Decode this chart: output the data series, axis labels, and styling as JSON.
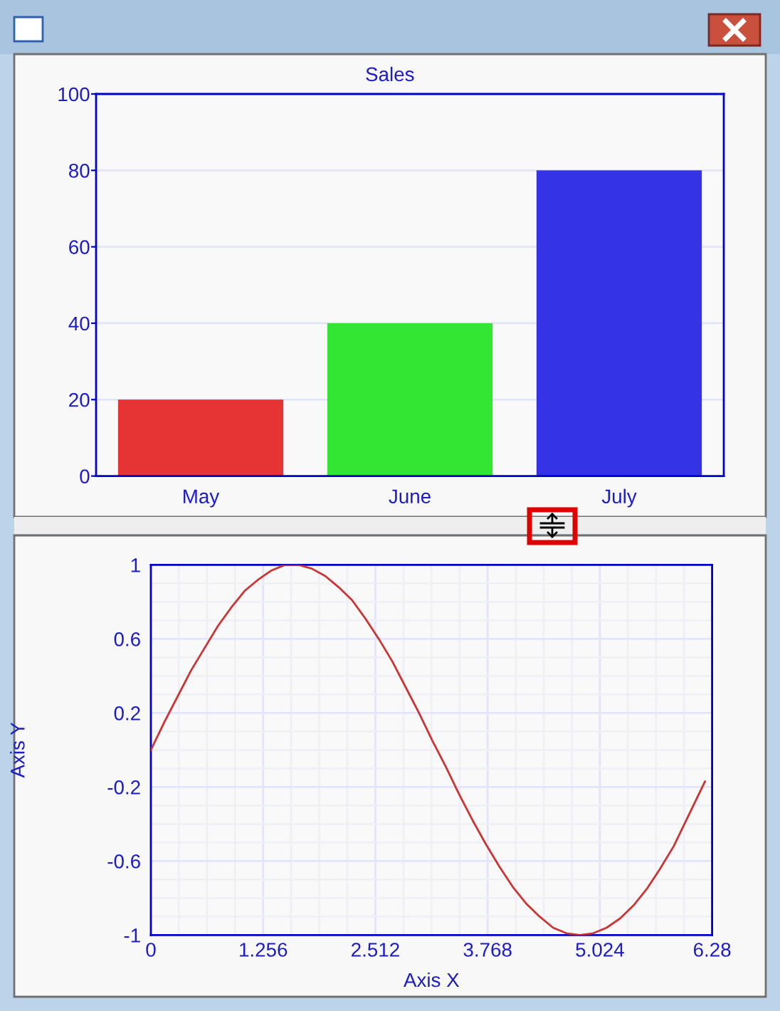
{
  "chart_data": [
    {
      "type": "bar",
      "title": "Sales",
      "categories": [
        "May",
        "June",
        "July"
      ],
      "values": [
        20,
        40,
        80
      ],
      "colors": [
        "#e63434",
        "#34e634",
        "#3434e6"
      ],
      "ylim": [
        0,
        100
      ],
      "yticks": [
        0,
        20,
        40,
        60,
        80,
        100
      ],
      "grid": "y"
    },
    {
      "type": "line",
      "xlabel": "Axis X",
      "ylabel": "Axis Y",
      "color": "#cc3333",
      "x": [
        0,
        0.15,
        0.3,
        0.45,
        0.6,
        0.75,
        0.9,
        1.05,
        1.2,
        1.35,
        1.5,
        1.65,
        1.8,
        1.95,
        2.1,
        2.25,
        2.4,
        2.55,
        2.7,
        2.85,
        3,
        3.15,
        3.3,
        3.45,
        3.6,
        3.75,
        3.9,
        4.05,
        4.2,
        4.35,
        4.5,
        4.65,
        4.8,
        4.95,
        5.1,
        5.25,
        5.4,
        5.55,
        5.7,
        5.85,
        6,
        6.15,
        6.2
      ],
      "values": [
        0,
        0.15,
        0.29,
        0.43,
        0.55,
        0.67,
        0.77,
        0.86,
        0.92,
        0.97,
        1,
        1,
        0.98,
        0.94,
        0.88,
        0.81,
        0.71,
        0.6,
        0.48,
        0.34,
        0.2,
        0.05,
        -0.09,
        -0.24,
        -0.38,
        -0.51,
        -0.63,
        -0.74,
        -0.83,
        -0.9,
        -0.96,
        -0.99,
        -1,
        -0.99,
        -0.96,
        -0.91,
        -0.84,
        -0.75,
        -0.64,
        -0.52,
        -0.37,
        -0.22,
        -0.17
      ],
      "xlim": [
        0,
        6.28
      ],
      "xticks": [
        0,
        1.256,
        2.512,
        3.768,
        5.024,
        6.28
      ],
      "ylim": [
        -1,
        1
      ],
      "yticks": [
        -1,
        -0.6,
        -0.2,
        0.2,
        0.6,
        1
      ],
      "grid": true
    }
  ]
}
